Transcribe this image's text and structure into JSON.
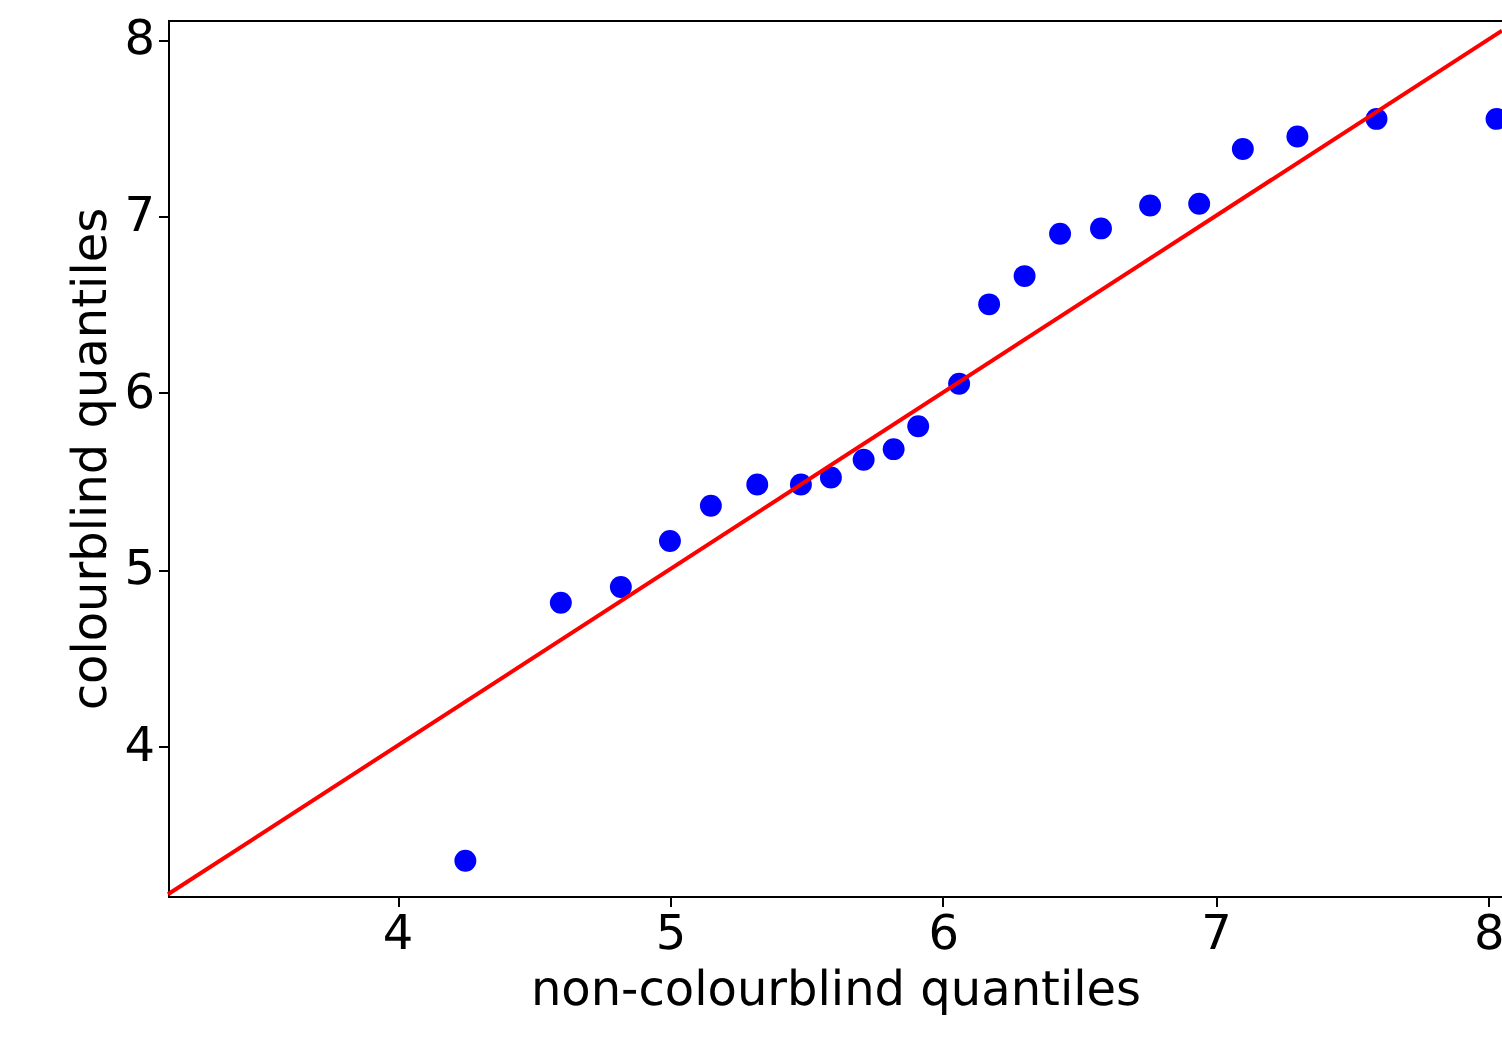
{
  "chart_data": {
    "type": "scatter",
    "xlabel": "non-colourblind quantiles",
    "ylabel": "colourblind quantiles",
    "xlim": [
      3.16,
      8.05
    ],
    "ylim": [
      3.15,
      8.11
    ],
    "xticks": [
      4,
      5,
      6,
      7,
      8
    ],
    "yticks": [
      4,
      5,
      6,
      7,
      8
    ],
    "grid": false,
    "series": [
      {
        "color": "#0000ff",
        "marker": "circle",
        "x": [
          4.25,
          4.6,
          4.82,
          5.0,
          5.15,
          5.32,
          5.48,
          5.59,
          5.71,
          5.82,
          5.91,
          6.06,
          6.17,
          6.3,
          6.43,
          6.58,
          6.76,
          6.94,
          7.1,
          7.3,
          7.59,
          8.03
        ],
        "values": [
          3.35,
          4.81,
          4.9,
          5.16,
          5.36,
          5.48,
          5.48,
          5.52,
          5.62,
          5.68,
          5.81,
          6.05,
          6.5,
          6.66,
          6.9,
          6.93,
          7.06,
          7.07,
          7.38,
          7.45,
          7.55,
          7.55
        ]
      },
      {
        "type": "line",
        "color": "#ff0000",
        "line_style": "solid",
        "x": [
          3.16,
          8.05
        ],
        "values": [
          3.16,
          8.05
        ]
      }
    ]
  }
}
